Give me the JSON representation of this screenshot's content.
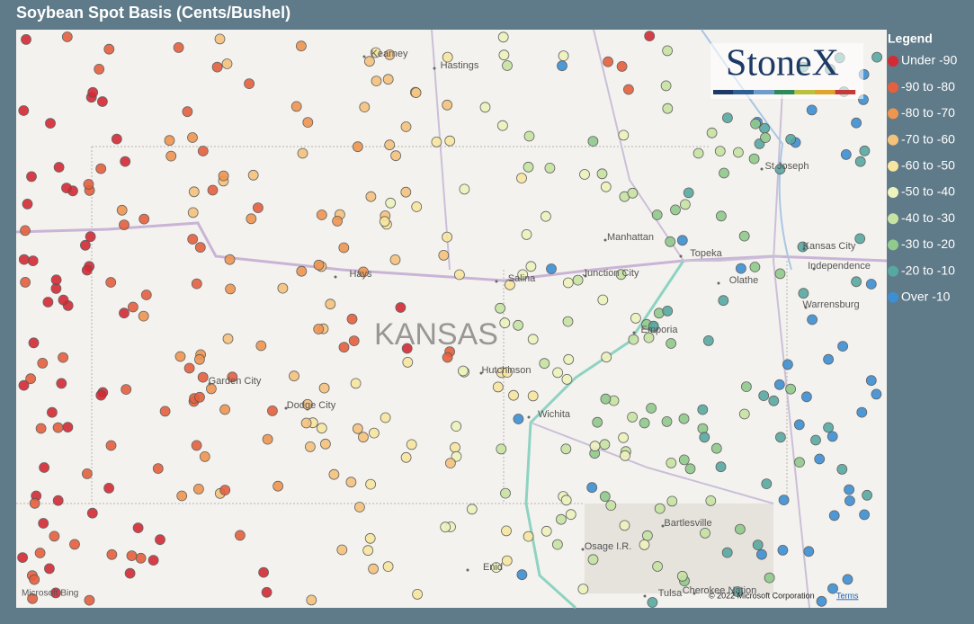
{
  "title": "Soybean Spot Basis (Cents/Bushel)",
  "legend": {
    "title": "Legend",
    "items": [
      {
        "label": "Under -90",
        "color": "#d42a35"
      },
      {
        "label": "-90 to -80",
        "color": "#e5603e"
      },
      {
        "label": "-80 to -70",
        "color": "#ef9550"
      },
      {
        "label": "-70 to -60",
        "color": "#f5c27c"
      },
      {
        "label": "-60 to -50",
        "color": "#f8e6a0"
      },
      {
        "label": "-50 to -40",
        "color": "#eef3bd"
      },
      {
        "label": "-40 to -30",
        "color": "#c6e3a3"
      },
      {
        "label": "-30 to -20",
        "color": "#90ca8c"
      },
      {
        "label": "-20 to -10",
        "color": "#58a8a2"
      },
      {
        "label": "Over -10",
        "color": "#3d8fd4"
      }
    ]
  },
  "map": {
    "state": "KANSAS",
    "places": [
      "Kearney",
      "Hastings",
      "St Joseph",
      "Manhattan",
      "Topeka",
      "Kansas City",
      "Independence",
      "Junction City",
      "Salina",
      "Hays",
      "Olathe",
      "Warrensburg",
      "Emporia",
      "Hutchinson",
      "Garden City",
      "Dodge City",
      "Wichita",
      "Bartlesville",
      "Osage I.R.",
      "Enid",
      "Tulsa",
      "Cherokee Nation"
    ],
    "logo": "StoneX",
    "bing": "Microsoft Bing",
    "attribution": "© 2022 Microsoft Corporation",
    "terms": "Terms"
  }
}
